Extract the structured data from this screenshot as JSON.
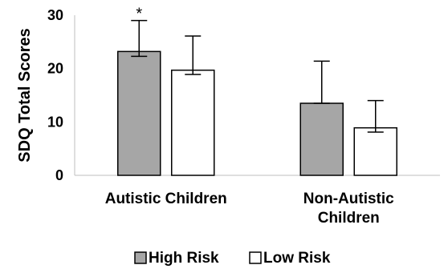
{
  "chart_data": {
    "type": "bar",
    "categories": [
      [
        "Autistic Children"
      ],
      [
        "Non-Autistic",
        "Children"
      ]
    ],
    "series": [
      {
        "name": "High Risk",
        "color": "#a6a6a6",
        "values": [
          23.2,
          13.5
        ],
        "error_low": [
          22.3,
          13.5
        ],
        "error_high": [
          29.0,
          21.4
        ]
      },
      {
        "name": "Low Risk",
        "color": "#ffffff",
        "values": [
          19.7,
          8.9
        ],
        "error_low": [
          18.9,
          8.1
        ],
        "error_high": [
          26.1,
          14.0
        ]
      }
    ],
    "annotations": [
      {
        "series": 0,
        "category": 0,
        "text": "*"
      }
    ],
    "ylabel": "SDQ Total Scores",
    "ylim": [
      0,
      30
    ],
    "yticks": [
      0,
      10,
      20,
      30
    ],
    "grid": false,
    "legend": "bottom"
  }
}
